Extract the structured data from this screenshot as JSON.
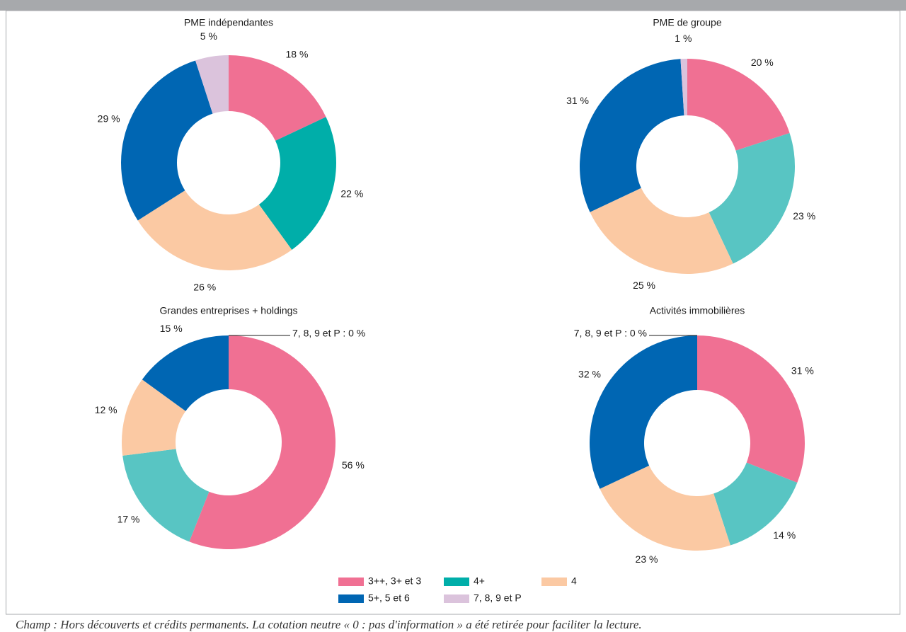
{
  "chart_data": [
    {
      "type": "pie",
      "title": "PME indépendantes",
      "categories": [
        "3++, 3+ et 3",
        "4+",
        "4",
        "5+, 5 et 6",
        "7, 8, 9 et P"
      ],
      "values": [
        18,
        22,
        26,
        29,
        5
      ],
      "value_labels": [
        "18 %",
        "22 %",
        "26 %",
        "29 %",
        "5 %"
      ],
      "colors": [
        "#f07093",
        "#00aea9",
        "#fbc9a3",
        "#0066b3",
        "#dbc3dc"
      ]
    },
    {
      "type": "pie",
      "title": "PME de groupe",
      "categories": [
        "3++, 3+ et 3",
        "4+",
        "4",
        "5+, 5 et 6",
        "7, 8, 9 et P"
      ],
      "values": [
        20,
        23,
        25,
        31,
        1
      ],
      "value_labels": [
        "20 %",
        "23 %",
        "25 %",
        "31 %",
        "1 %"
      ],
      "colors": [
        "#f07093",
        "#58c5c3",
        "#fbc9a3",
        "#0066b3",
        "#dbc3dc"
      ]
    },
    {
      "type": "pie",
      "title": "Grandes entreprises + holdings",
      "categories": [
        "3++, 3+ et 3",
        "4+",
        "4",
        "5+, 5 et 6",
        "7, 8, 9 et P"
      ],
      "values": [
        56,
        17,
        12,
        15,
        0
      ],
      "value_labels": [
        "56 %",
        "17 %",
        "12 %",
        "15 %",
        "7, 8, 9 et P : 0 %"
      ],
      "colors": [
        "#f07093",
        "#58c5c3",
        "#fbc9a3",
        "#0066b3",
        "#dbc3dc"
      ]
    },
    {
      "type": "pie",
      "title": "Activités immobilières",
      "categories": [
        "3++, 3+ et 3",
        "4+",
        "4",
        "5+, 5 et 6",
        "7, 8, 9 et P"
      ],
      "values": [
        31,
        14,
        23,
        32,
        0
      ],
      "value_labels": [
        "31 %",
        "14 %",
        "23 %",
        "32 %",
        "7, 8, 9 et P : 0 %"
      ],
      "colors": [
        "#f07093",
        "#58c5c3",
        "#fbc9a3",
        "#0066b3",
        "#dbc3dc"
      ]
    }
  ],
  "note": "Champ : Hors découverts et crédits permanents. La cotation neutre « 0 : pas d'information » a été retirée pour faciliter la lecture."
}
